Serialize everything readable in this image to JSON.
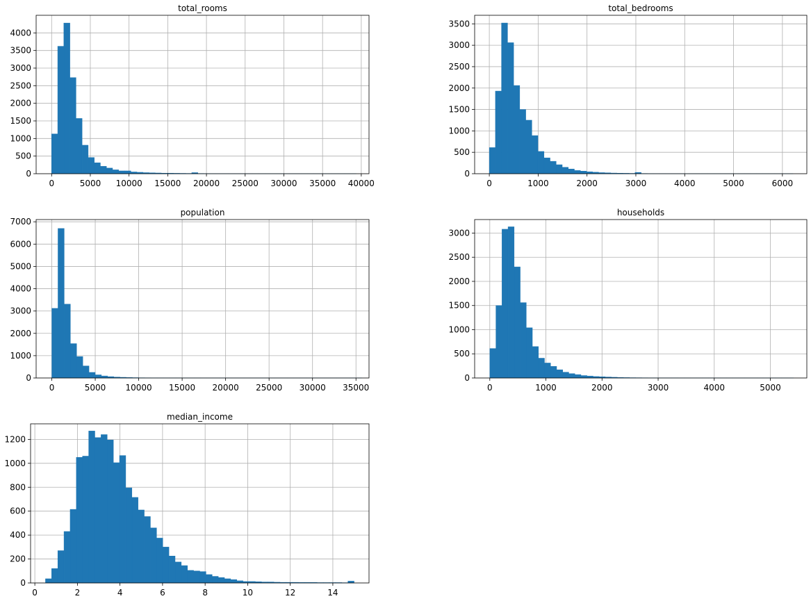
{
  "chart_data": [
    {
      "type": "bar",
      "title": "total_rooms",
      "xlabel": "",
      "ylabel": "",
      "xlim": [
        -2000,
        41000
      ],
      "ylim": [
        0,
        4500
      ],
      "grid": true,
      "bin_start": 2,
      "bin_width": 787,
      "values": [
        1130,
        3620,
        4280,
        2730,
        1570,
        810,
        460,
        310,
        210,
        160,
        110,
        80,
        80,
        50,
        40,
        30,
        25,
        20,
        15,
        15,
        12,
        10,
        8,
        30,
        6,
        5,
        4,
        3,
        3,
        2,
        2,
        2,
        2,
        1,
        1,
        1,
        1,
        1,
        1,
        1,
        1,
        1,
        1,
        1,
        1,
        1,
        1,
        1,
        1,
        1
      ],
      "x_ticks": [
        0,
        5000,
        10000,
        15000,
        20000,
        25000,
        30000,
        35000,
        40000
      ],
      "y_ticks": [
        0,
        500,
        1000,
        1500,
        2000,
        2500,
        3000,
        3500,
        4000
      ]
    },
    {
      "type": "bar",
      "title": "total_bedrooms",
      "xlabel": "",
      "ylabel": "",
      "xlim": [
        -300,
        6500
      ],
      "ylim": [
        0,
        3700
      ],
      "grid": true,
      "bin_start": 1,
      "bin_width": 124.3,
      "values": [
        610,
        1930,
        3520,
        3060,
        2060,
        1500,
        1250,
        890,
        520,
        370,
        290,
        210,
        150,
        110,
        75,
        60,
        45,
        35,
        25,
        20,
        15,
        12,
        10,
        8,
        30,
        5,
        4,
        3,
        3,
        2,
        2,
        2,
        1,
        1,
        1,
        1,
        1,
        1,
        1,
        1,
        1,
        1,
        1,
        1,
        1,
        1,
        1,
        1,
        1,
        1
      ],
      "x_ticks": [
        0,
        1000,
        2000,
        3000,
        4000,
        5000,
        6000
      ],
      "y_ticks": [
        0,
        500,
        1000,
        1500,
        2000,
        2500,
        3000,
        3500
      ]
    },
    {
      "type": "bar",
      "title": "population",
      "xlabel": "",
      "ylabel": "",
      "xlim": [
        -1800,
        36500
      ],
      "ylim": [
        0,
        7100
      ],
      "grid": true,
      "bin_start": 3,
      "bin_width": 713,
      "values": [
        3120,
        6700,
        3310,
        1540,
        960,
        540,
        250,
        140,
        90,
        60,
        40,
        30,
        20,
        15,
        10,
        8,
        6,
        5,
        4,
        3,
        3,
        2,
        2,
        2,
        1,
        1,
        1,
        1,
        1,
        1,
        1,
        1,
        1,
        1,
        1,
        1,
        1,
        1,
        1,
        1,
        1,
        1,
        1,
        1,
        1,
        1,
        1,
        1,
        1,
        1
      ],
      "x_ticks": [
        0,
        5000,
        10000,
        15000,
        20000,
        25000,
        30000,
        35000
      ],
      "y_ticks": [
        0,
        1000,
        2000,
        3000,
        4000,
        5000,
        6000,
        7000
      ]
    },
    {
      "type": "bar",
      "title": "households",
      "xlabel": "",
      "ylabel": "",
      "xlim": [
        -270,
        5650
      ],
      "ylim": [
        0,
        3280
      ],
      "grid": true,
      "bin_start": 1,
      "bin_width": 108.2,
      "values": [
        610,
        1500,
        3080,
        3130,
        2300,
        1560,
        1040,
        650,
        410,
        310,
        240,
        170,
        120,
        90,
        70,
        50,
        40,
        30,
        25,
        20,
        15,
        10,
        8,
        6,
        5,
        4,
        3,
        3,
        2,
        2,
        2,
        1,
        1,
        1,
        1,
        1,
        1,
        1,
        1,
        1,
        1,
        1,
        1,
        1,
        1,
        1,
        1,
        1,
        1,
        1
      ],
      "x_ticks": [
        0,
        1000,
        2000,
        3000,
        4000,
        5000
      ],
      "y_ticks": [
        0,
        500,
        1000,
        1500,
        2000,
        2500,
        3000
      ]
    },
    {
      "type": "bar",
      "title": "median_income",
      "xlabel": "",
      "ylabel": "",
      "xlim": [
        -0.2,
        15.7
      ],
      "ylim": [
        0,
        1330
      ],
      "grid": true,
      "bin_start": 0.5,
      "bin_width": 0.29,
      "values": [
        35,
        120,
        270,
        430,
        615,
        1050,
        1060,
        1270,
        1215,
        1240,
        1195,
        1005,
        1065,
        795,
        715,
        610,
        555,
        460,
        375,
        300,
        225,
        175,
        145,
        105,
        100,
        95,
        70,
        55,
        45,
        35,
        28,
        18,
        12,
        12,
        10,
        8,
        8,
        6,
        5,
        5,
        5,
        4,
        4,
        4,
        3,
        3,
        3,
        3,
        2,
        15
      ],
      "x_ticks": [
        0,
        2,
        4,
        6,
        8,
        10,
        12,
        14
      ],
      "y_ticks": [
        0,
        200,
        400,
        600,
        800,
        1000,
        1200
      ]
    }
  ]
}
